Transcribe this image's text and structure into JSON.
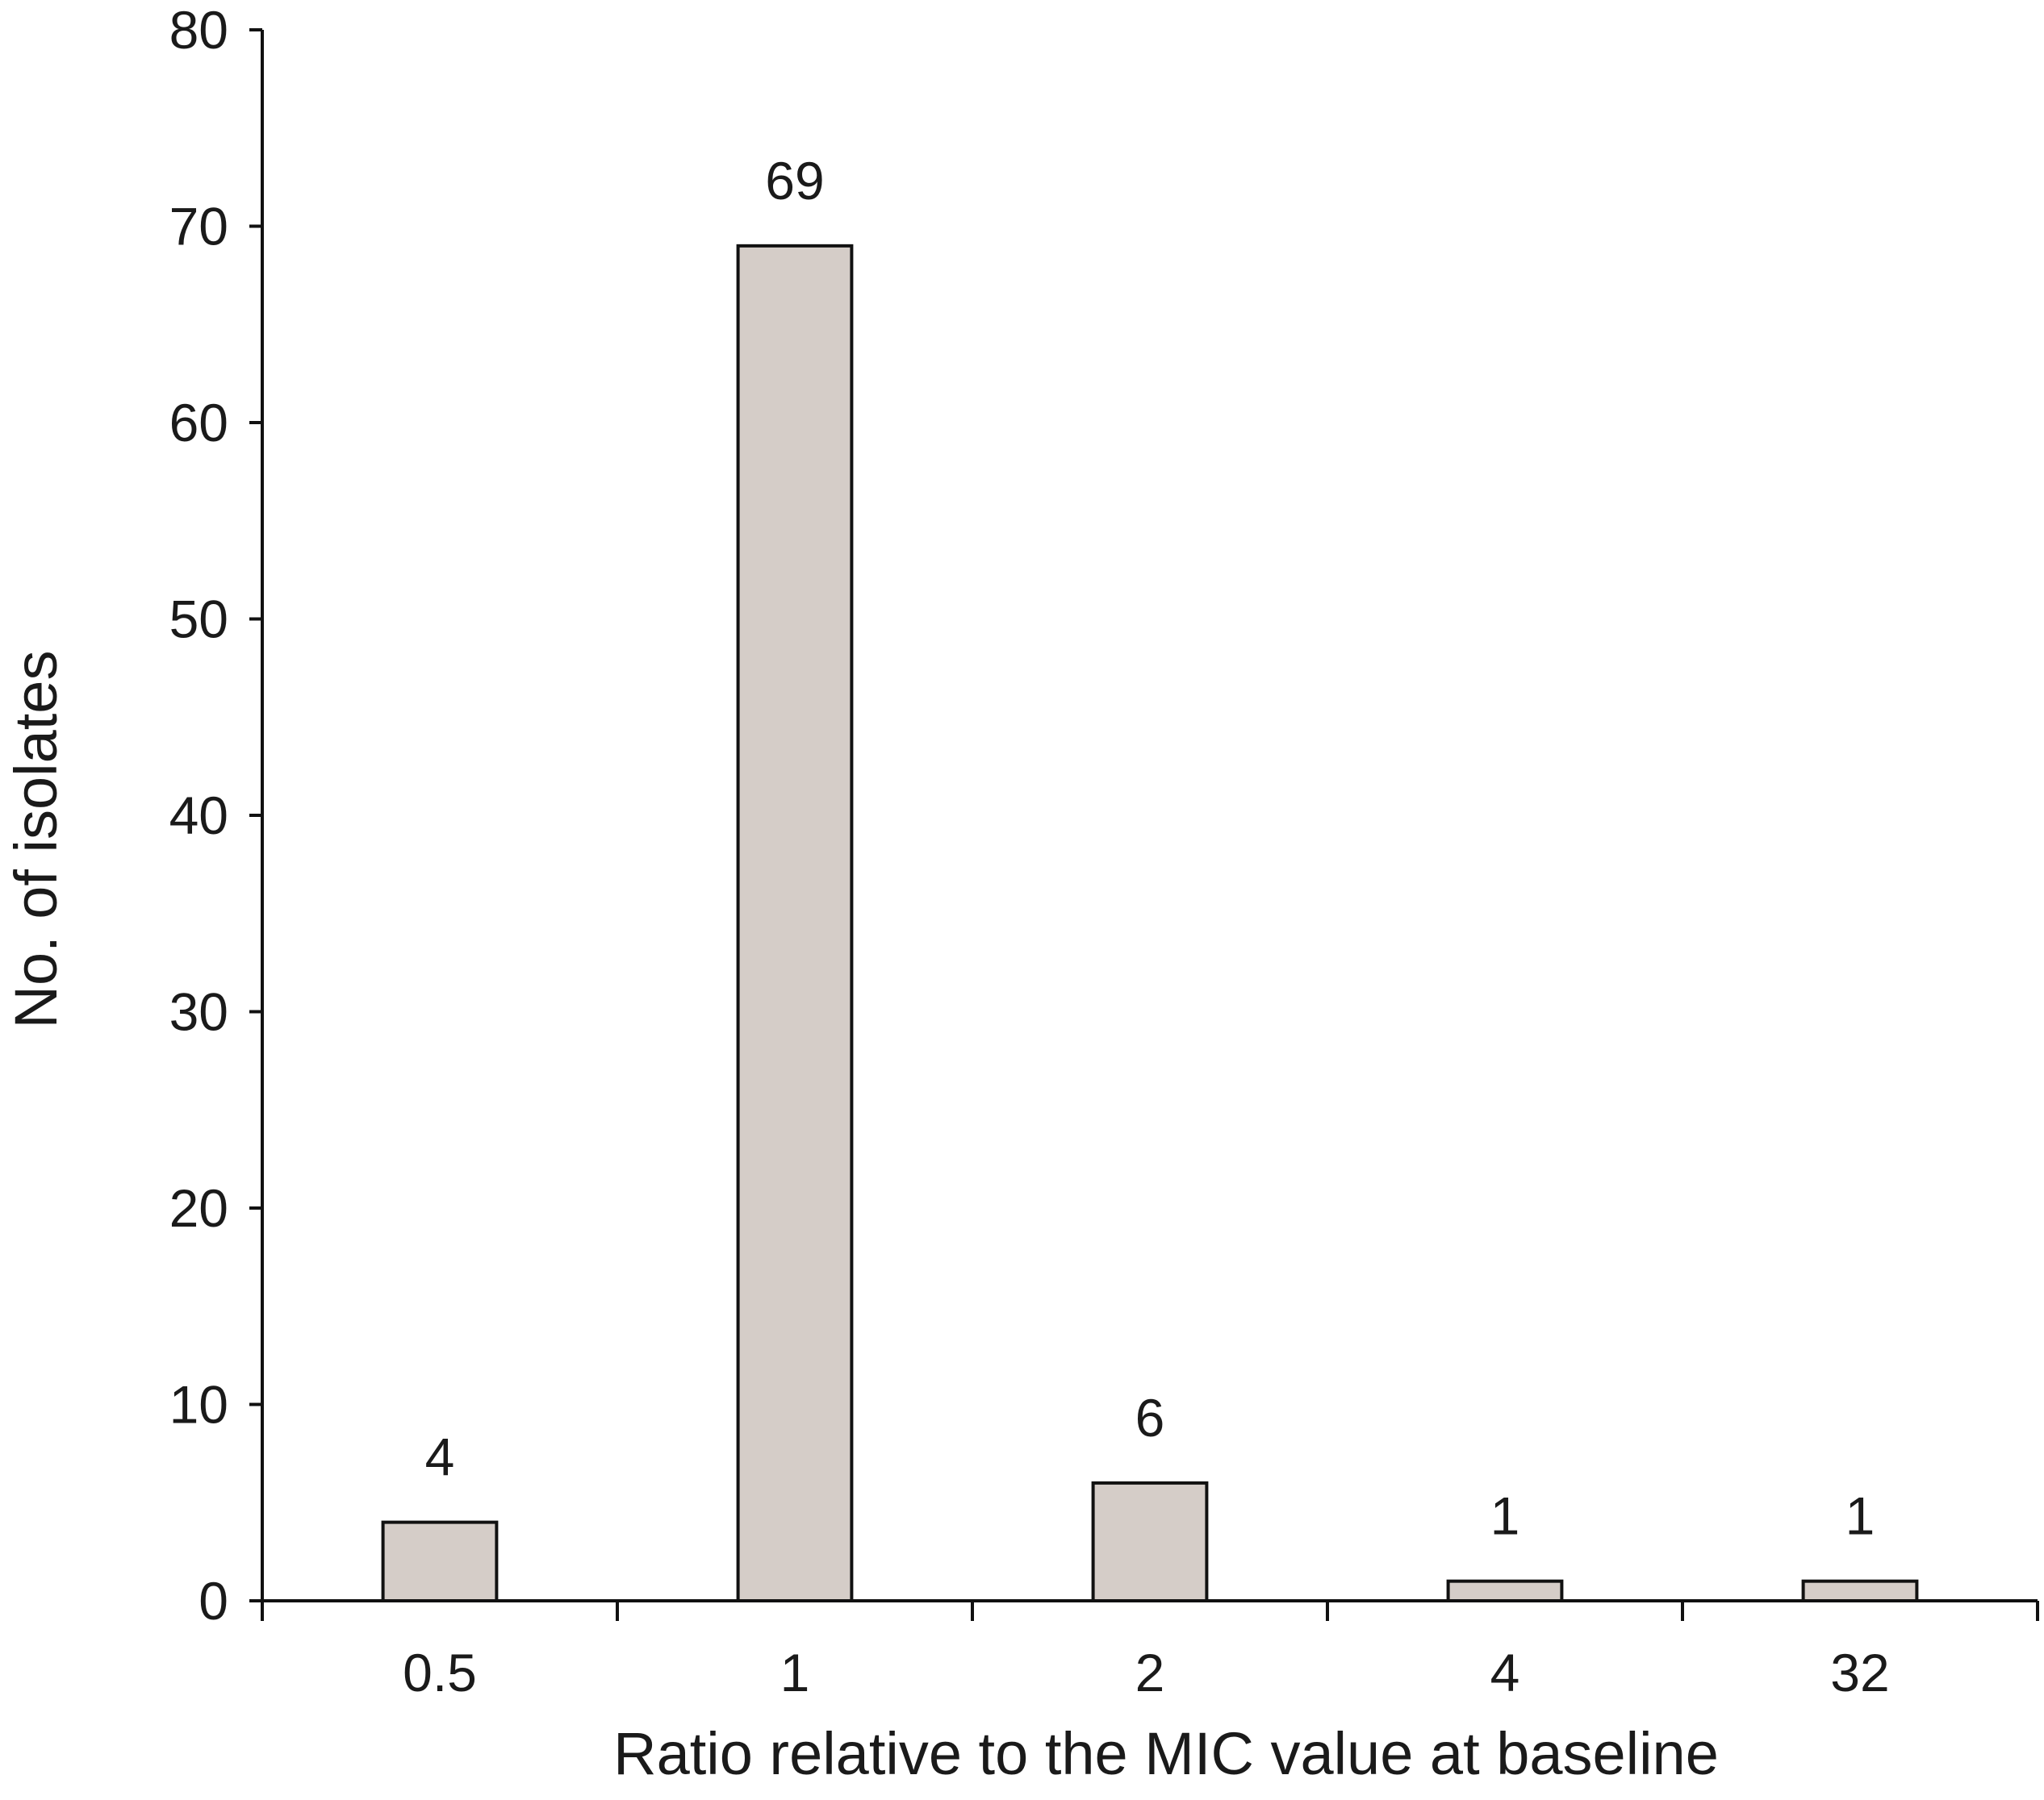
{
  "chart_data": {
    "type": "bar",
    "title": "",
    "xlabel": "Ratio relative to the MIC value at baseline",
    "ylabel": "No. of isolates",
    "categories": [
      "0.5",
      "1",
      "2",
      "4",
      "32"
    ],
    "values": [
      4,
      69,
      6,
      1,
      1
    ],
    "data_labels": [
      "4",
      "69",
      "6",
      "1",
      "1"
    ],
    "ylim": [
      0,
      80
    ],
    "yticks": [
      "0",
      "10",
      "20",
      "30",
      "40",
      "50",
      "60",
      "70",
      "80"
    ],
    "grid": false,
    "legend": "none",
    "bar_color": "#d5cdc8",
    "bar_edge_color": "#111111"
  }
}
